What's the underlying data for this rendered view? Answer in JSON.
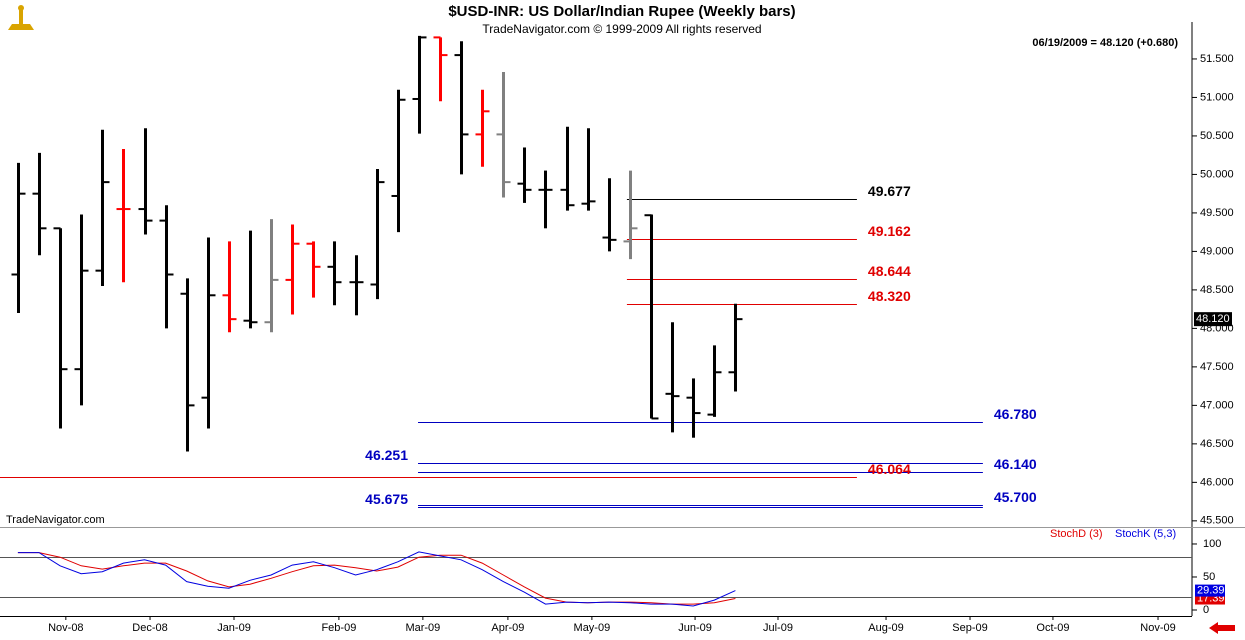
{
  "chart_data": [
    {
      "type": "ohlc",
      "title": "$USD-INR:  US Dollar/Indian Rupee  (Weekly bars)",
      "subtitle": "TradeNavigator.com © 1999-2009 All rights reserved",
      "note": "06/19/2009 = 48.120 (+0.680)",
      "watermark": "TradeNavigator.com",
      "x": [
        0,
        1,
        2,
        3,
        4,
        5,
        6,
        7,
        8,
        9,
        10,
        11,
        12,
        13,
        14,
        15,
        16,
        17,
        18,
        19,
        20,
        21,
        22,
        23,
        24,
        25,
        26,
        27,
        28,
        29,
        30,
        31,
        32,
        33,
        34
      ],
      "open": [
        48.7,
        49.75,
        49.3,
        47.47,
        48.75,
        49.55,
        49.55,
        49.4,
        48.45,
        47.1,
        48.43,
        48.1,
        48.08,
        48.63,
        49.1,
        48.8,
        48.6,
        48.57,
        49.72,
        50.98,
        51.78,
        51.55,
        50.52,
        50.52,
        49.88,
        49.8,
        49.8,
        49.62,
        49.18,
        49.13,
        49.47,
        47.15,
        47.1,
        46.88,
        47.43
      ],
      "high": [
        50.15,
        50.28,
        49.3,
        49.48,
        50.58,
        50.33,
        50.6,
        49.6,
        48.65,
        49.18,
        49.13,
        49.27,
        49.42,
        49.35,
        49.13,
        49.13,
        48.95,
        50.07,
        51.1,
        51.8,
        51.78,
        51.73,
        51.1,
        51.33,
        50.35,
        50.05,
        50.62,
        50.6,
        49.95,
        50.05,
        49.48,
        48.08,
        47.35,
        47.78,
        48.32
      ],
      "low": [
        48.2,
        48.95,
        46.7,
        47.0,
        48.55,
        48.6,
        49.22,
        48.0,
        46.4,
        46.7,
        47.95,
        48.0,
        47.95,
        48.18,
        48.4,
        48.3,
        48.17,
        48.38,
        49.25,
        50.53,
        50.95,
        50.0,
        50.1,
        49.7,
        49.63,
        49.3,
        49.53,
        49.53,
        49.0,
        48.9,
        46.83,
        46.65,
        46.58,
        46.85,
        47.18
      ],
      "close": [
        49.75,
        49.3,
        47.47,
        48.75,
        49.9,
        49.55,
        49.4,
        48.7,
        47.0,
        48.43,
        48.12,
        48.08,
        48.63,
        49.1,
        48.8,
        48.6,
        48.6,
        49.9,
        50.97,
        51.78,
        51.55,
        50.52,
        50.82,
        49.9,
        49.8,
        49.8,
        49.6,
        49.65,
        49.15,
        49.3,
        46.83,
        47.12,
        46.9,
        47.43,
        48.12
      ],
      "colors": [
        "#000000",
        "#000000",
        "#000000",
        "#000000",
        "#000000",
        "#ff0000",
        "#000000",
        "#000000",
        "#000000",
        "#000000",
        "#ff0000",
        "#000000",
        "#808080",
        "#ff0000",
        "#ff0000",
        "#000000",
        "#000000",
        "#000000",
        "#000000",
        "#000000",
        "#ff0000",
        "#000000",
        "#ff0000",
        "#808080",
        "#000000",
        "#000000",
        "#000000",
        "#000000",
        "#000000",
        "#808080",
        "#000000",
        "#000000",
        "#000000",
        "#000000",
        "#000000"
      ],
      "xlim": [
        -0.85,
        55.64
      ],
      "ylim": [
        45.42,
        51.98
      ],
      "yticks": [
        {
          "value": 45.5,
          "label": "45.500"
        },
        {
          "value": 46.0,
          "label": "46.000"
        },
        {
          "value": 46.5,
          "label": "46.500"
        },
        {
          "value": 47.0,
          "label": "47.000"
        },
        {
          "value": 47.5,
          "label": "47.500"
        },
        {
          "value": 48.0,
          "label": "48.000"
        },
        {
          "value": 48.5,
          "label": "48.500"
        },
        {
          "value": 49.0,
          "label": "49.000"
        },
        {
          "value": 49.5,
          "label": "49.500"
        },
        {
          "value": 50.0,
          "label": "50.000"
        },
        {
          "value": 50.5,
          "label": "50.500"
        },
        {
          "value": 51.0,
          "label": "51.000"
        },
        {
          "value": 51.5,
          "label": "51.500"
        }
      ],
      "levels": [
        {
          "value": 49.677,
          "label": "49.677",
          "color": "#000000",
          "x": [
            28.86,
            39.76
          ],
          "side": "right"
        },
        {
          "value": 49.162,
          "label": "49.162",
          "color": "#e00000",
          "x": [
            28.86,
            39.76
          ],
          "side": "right"
        },
        {
          "value": 48.644,
          "label": "48.644",
          "color": "#e00000",
          "x": [
            28.86,
            39.76
          ],
          "side": "right"
        },
        {
          "value": 48.32,
          "label": "48.320",
          "color": "#e00000",
          "x": [
            28.86,
            39.76
          ],
          "side": "right"
        },
        {
          "value": 46.78,
          "label": "46.780",
          "color": "#0000c0",
          "x": [
            18.96,
            45.73
          ],
          "side": "right"
        },
        {
          "value": 46.251,
          "label": "46.251",
          "color": "#0000c0",
          "x": [
            18.96,
            45.73
          ],
          "side": "left"
        },
        {
          "value": 46.14,
          "label": "46.140",
          "color": "#0000c0",
          "x": [
            18.96,
            45.73
          ],
          "side": "right"
        },
        {
          "value": 46.064,
          "label": "46.064",
          "color": "#e00000",
          "x": [
            -0.85,
            39.76
          ],
          "side": "right"
        },
        {
          "value": 45.675,
          "label": "45.675",
          "color": "#0000c0",
          "x": [
            18.96,
            45.73
          ],
          "side": "left"
        },
        {
          "value": 45.7,
          "label": "45.700",
          "color": "#0000c0",
          "x": [
            18.96,
            45.73
          ],
          "side": "right"
        }
      ],
      "last": {
        "value": 48.12,
        "label": "48.120"
      }
    },
    {
      "type": "line",
      "x": [
        0,
        1,
        2,
        3,
        4,
        5,
        6,
        7,
        8,
        9,
        10,
        11,
        12,
        13,
        14,
        15,
        16,
        17,
        18,
        19,
        20,
        21,
        22,
        23,
        24,
        25,
        26,
        27,
        28,
        29,
        30,
        31,
        32,
        33,
        34
      ],
      "series": [
        {
          "name": "StochD (3)",
          "color": "#e00000",
          "values": [
            87,
            87,
            80,
            67,
            62,
            67,
            71,
            71,
            59,
            44,
            35,
            39,
            48,
            58,
            67,
            68,
            64,
            59,
            65,
            80,
            83,
            83,
            71,
            53,
            35,
            18,
            12,
            11,
            12,
            12,
            11,
            9,
            9,
            11,
            17.39
          ]
        },
        {
          "name": "StochK (5,3)",
          "color": "#0000e0",
          "values": [
            87,
            87,
            67,
            55,
            58,
            71,
            76,
            68,
            43,
            36,
            33,
            45,
            53,
            68,
            73,
            64,
            53,
            61,
            73,
            88,
            82,
            76,
            61,
            43,
            27,
            9,
            12,
            11,
            12,
            11,
            9,
            9,
            6,
            15,
            29.39
          ]
        }
      ],
      "xlim": [
        -0.85,
        55.64
      ],
      "ylim": [
        -9.1,
        124.2
      ],
      "yticks": [
        100,
        50,
        0
      ],
      "ref_lines": [
        80,
        20
      ],
      "xticks": [
        {
          "value": 2.27,
          "label": "Nov-08"
        },
        {
          "value": 6.26,
          "label": "Dec-08"
        },
        {
          "value": 10.24,
          "label": "Jan-09"
        },
        {
          "value": 15.21,
          "label": "Feb-09"
        },
        {
          "value": 19.19,
          "label": "Mar-09"
        },
        {
          "value": 23.22,
          "label": "Apr-09"
        },
        {
          "value": 27.2,
          "label": "May-09"
        },
        {
          "value": 32.09,
          "label": "Jun-09"
        },
        {
          "value": 36.02,
          "label": "Jul-09"
        },
        {
          "value": 41.14,
          "label": "Aug-09"
        },
        {
          "value": 45.12,
          "label": "Sep-09"
        },
        {
          "value": 49.05,
          "label": "Oct-09"
        },
        {
          "value": 54.03,
          "label": "Nov-09"
        }
      ]
    }
  ]
}
